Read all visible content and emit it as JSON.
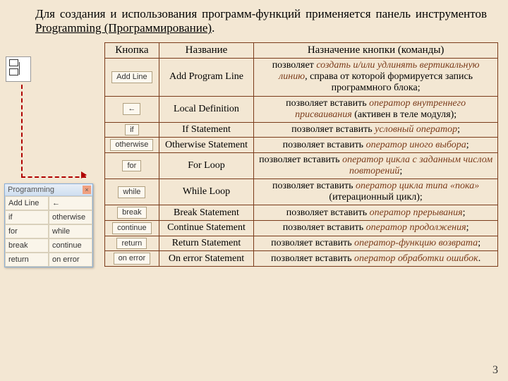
{
  "intro": {
    "text_before": "Для создания и использования программ-функций применяется панель инструментов ",
    "link": "Programming (Программирование)",
    "text_after": "."
  },
  "table": {
    "headers": {
      "btn": "Кнопка",
      "name": "Название",
      "desc": "Назначение кнопки (команды)"
    },
    "rows": [
      {
        "btn": "Add Line",
        "name": "Add Program Line",
        "desc_a": "позволяет ",
        "desc_i": "создать и/или удлинять вертикальную линию",
        "desc_b": ", справа от которой формируется запись программного блока;"
      },
      {
        "btn": "←",
        "name": "Local Definition",
        "desc_a": "позволяет вставить ",
        "desc_i": "оператор внутреннего присваивания",
        "desc_b": " (активен в теле модуля);"
      },
      {
        "btn": "if",
        "name": "If Statement",
        "desc_a": "позволяет вставить ",
        "desc_i": "условный оператор",
        "desc_b": ";"
      },
      {
        "btn": "otherwise",
        "name": "Otherwise Statement",
        "desc_a": "позволяет вставить ",
        "desc_i": "оператор иного выбора",
        "desc_b": ";"
      },
      {
        "btn": "for",
        "name": "For Loop",
        "desc_a": "позволяет вставить ",
        "desc_i": "оператор цикла с заданным числом повторений",
        "desc_b": ";"
      },
      {
        "btn": "while",
        "name": "While Loop",
        "desc_a": "позволяет вставить ",
        "desc_i": "оператор цикла типа «пока»",
        "desc_b": " (итерационный цикл);"
      },
      {
        "btn": "break",
        "name": "Break Statement",
        "desc_a": "позволяет вставить ",
        "desc_i": "оператор прерывания",
        "desc_b": ";"
      },
      {
        "btn": "continue",
        "name": "Continue Statement",
        "desc_a": "позволяет вставить ",
        "desc_i": "оператор продолжения",
        "desc_b": ";"
      },
      {
        "btn": "return",
        "name": "Return Statement",
        "desc_a": "позволяет вставить ",
        "desc_i": "оператор-функцию возврата",
        "desc_b": ";"
      },
      {
        "btn": "on error",
        "name": "On error Statement",
        "desc_a": "позволяет вставить ",
        "desc_i": "оператор обработки ошибок",
        "desc_b": "."
      }
    ]
  },
  "palette": {
    "title": "Programming",
    "cells": [
      "Add Line",
      "←",
      "if",
      "otherwise",
      "for",
      "while",
      "break",
      "continue",
      "return",
      "on error"
    ]
  },
  "pagenum": "3"
}
